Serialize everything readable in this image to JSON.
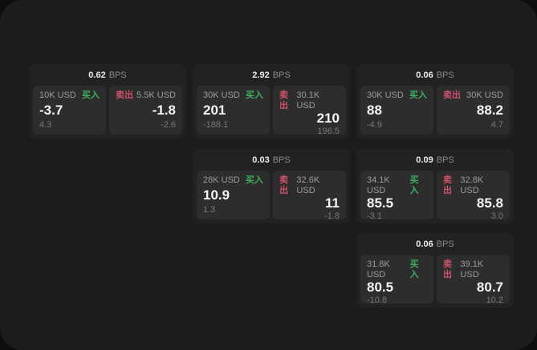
{
  "labels": {
    "bps_unit": "BPS",
    "buy": "买入",
    "sell": "卖出"
  },
  "colors": {
    "background": "#0e0e0f",
    "panel": "#1c1c1d",
    "card": "#222223",
    "subpanel": "#2d2d2e",
    "buy_green": "#3fae5f",
    "sell_red": "#cf5268",
    "value_white": "#f5f5f5",
    "muted_gray": "#9c9c9c"
  },
  "cards": [
    {
      "bps": "0.62",
      "buy": {
        "notional": "10K USD",
        "price": "-3.7",
        "delta": "4.3"
      },
      "sell": {
        "notional": "5.5K USD",
        "price": "-1.8",
        "delta": "-2.6"
      }
    },
    {
      "bps": "2.92",
      "buy": {
        "notional": "30K USD",
        "price": "201",
        "delta": "-188.1"
      },
      "sell": {
        "notional": "30.1K USD",
        "price": "210",
        "delta": "196.5"
      }
    },
    {
      "bps": "0.06",
      "buy": {
        "notional": "30K USD",
        "price": "88",
        "delta": "-4.9"
      },
      "sell": {
        "notional": "30K USD",
        "price": "88.2",
        "delta": "4.7"
      }
    },
    {
      "bps": "0.03",
      "buy": {
        "notional": "28K USD",
        "price": "10.9",
        "delta": "1.3"
      },
      "sell": {
        "notional": "32.6K USD",
        "price": "11",
        "delta": "-1.8"
      }
    },
    {
      "bps": "0.09",
      "buy": {
        "notional": "34.1K USD",
        "price": "85.5",
        "delta": "-3.1"
      },
      "sell": {
        "notional": "32.8K USD",
        "price": "85.8",
        "delta": "3.0"
      }
    },
    {
      "bps": "0.06",
      "buy": {
        "notional": "31.8K USD",
        "price": "80.5",
        "delta": "-10.8"
      },
      "sell": {
        "notional": "39.1K USD",
        "price": "80.7",
        "delta": "10.2"
      }
    }
  ]
}
